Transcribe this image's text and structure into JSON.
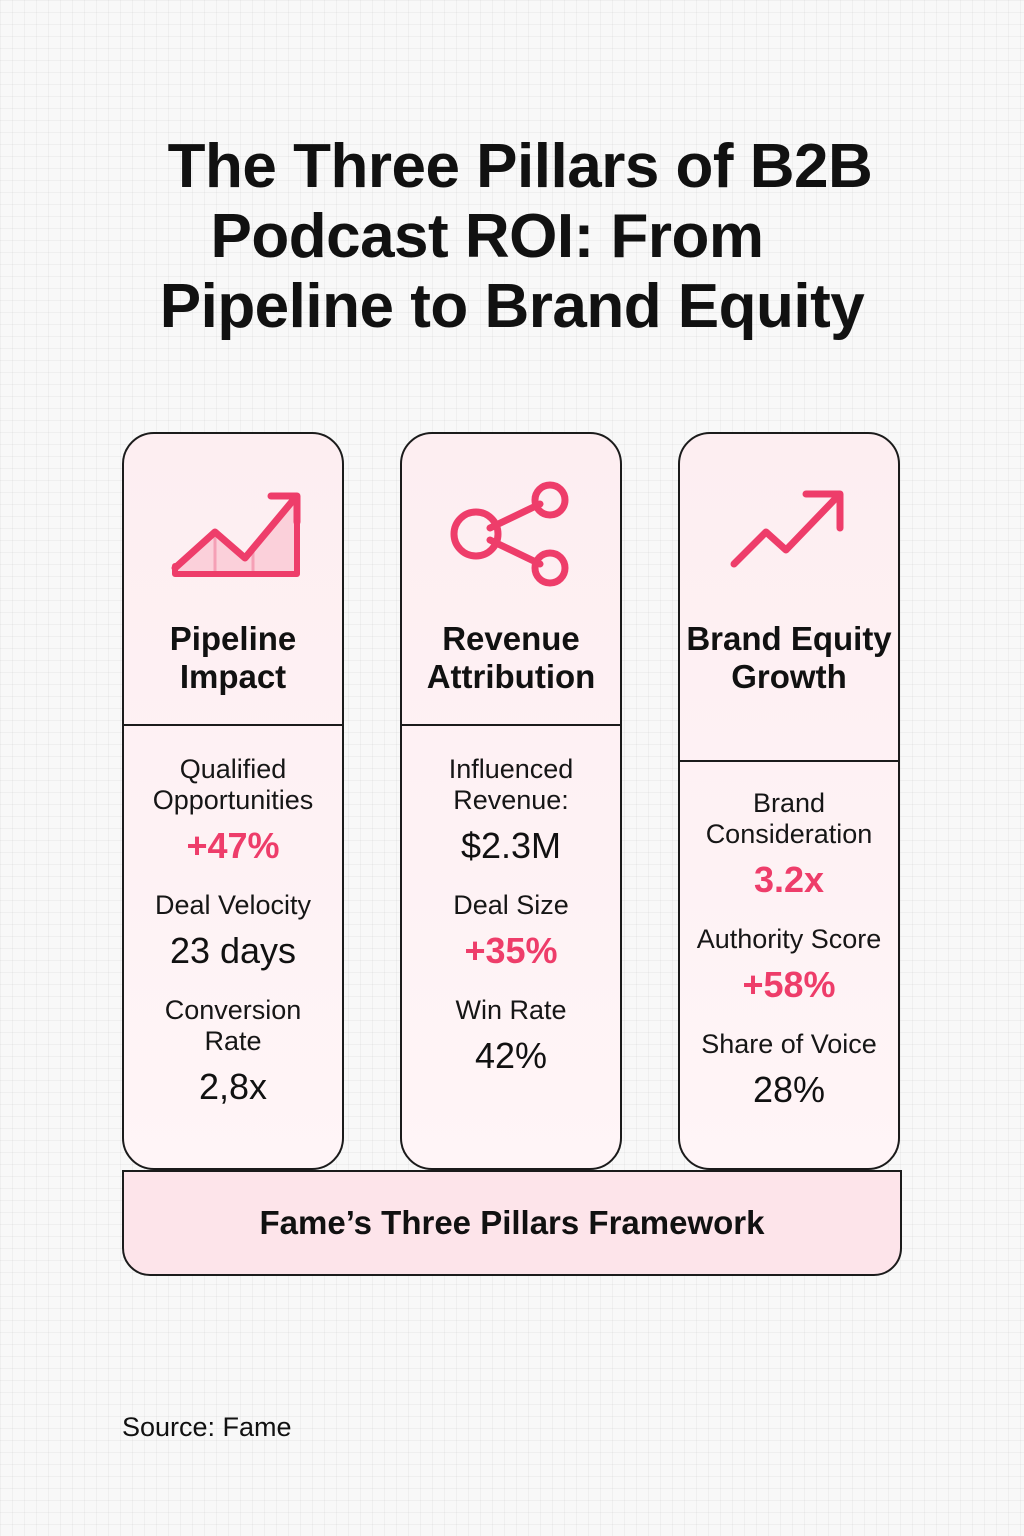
{
  "title": {
    "line1": "The Three Pillars of B2B",
    "line2": "Podcast ROI: From",
    "line3": "Pipeline to Brand Equity"
  },
  "colors": {
    "accent": "#ee3d6a",
    "card_fill": "#fdeef1",
    "border": "#1b1b1b",
    "framework_fill": "#fde4ea"
  },
  "pillars": [
    {
      "icon": "area-chart-up-icon",
      "name": "Pipeline Impact",
      "metrics": [
        {
          "label": "Qualified Opportunities",
          "value": "+47%",
          "accent": true
        },
        {
          "label": "Deal Velocity",
          "value": "23 days",
          "accent": false
        },
        {
          "label": "Conversion Rate",
          "value": "2,8x",
          "accent": false
        }
      ]
    },
    {
      "icon": "share-nodes-icon",
      "name": "Revenue Attribution",
      "metrics": [
        {
          "label": "Influenced Revenue:",
          "value": "$2.3M",
          "accent": false
        },
        {
          "label": "Deal Size",
          "value": "+35%",
          "accent": true
        },
        {
          "label": "Win Rate",
          "value": "42%",
          "accent": false
        }
      ]
    },
    {
      "icon": "trend-arrow-up-icon",
      "name": "Brand Equity Growth",
      "metrics": [
        {
          "label": "Brand Consideration",
          "value": "3.2x",
          "accent": true
        },
        {
          "label": "Authority Score",
          "value": "+58%",
          "accent": true
        },
        {
          "label": "Share of Voice",
          "value": "28%",
          "accent": false
        }
      ]
    }
  ],
  "framework": "Fame’s Three Pillars Framework",
  "source": "Source: Fame"
}
